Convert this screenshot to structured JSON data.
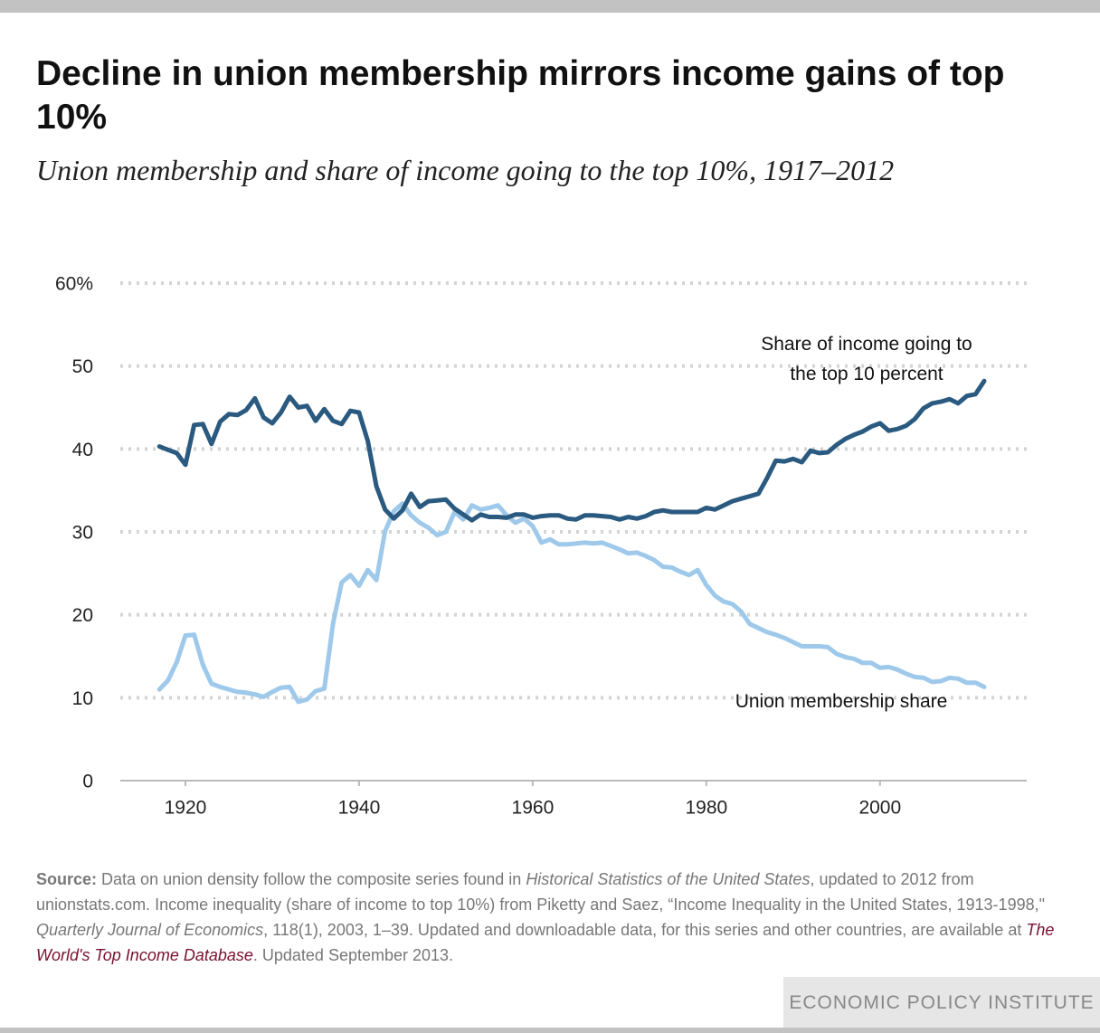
{
  "chart_data": {
    "type": "line",
    "title": "Decline in union membership mirrors income gains of top 10%",
    "subtitle": "Union membership and share of income going to the top 10%, 1917–2012",
    "x": [
      1917,
      1918,
      1919,
      1920,
      1921,
      1922,
      1923,
      1924,
      1925,
      1926,
      1927,
      1928,
      1929,
      1930,
      1931,
      1932,
      1933,
      1934,
      1935,
      1936,
      1937,
      1938,
      1939,
      1940,
      1941,
      1942,
      1943,
      1944,
      1945,
      1946,
      1947,
      1948,
      1949,
      1950,
      1951,
      1952,
      1953,
      1954,
      1955,
      1956,
      1957,
      1958,
      1959,
      1960,
      1961,
      1962,
      1963,
      1964,
      1965,
      1966,
      1967,
      1968,
      1969,
      1970,
      1971,
      1972,
      1973,
      1974,
      1975,
      1976,
      1977,
      1978,
      1979,
      1980,
      1981,
      1982,
      1983,
      1984,
      1985,
      1986,
      1987,
      1988,
      1989,
      1990,
      1991,
      1992,
      1993,
      1994,
      1995,
      1996,
      1997,
      1998,
      1999,
      2000,
      2001,
      2002,
      2003,
      2004,
      2005,
      2006,
      2007,
      2008,
      2009,
      2010,
      2011,
      2012
    ],
    "series": [
      {
        "name": "Share of income going to the top 10 percent",
        "color": "#2a5a7f",
        "values": [
          40.3,
          39.9,
          39.5,
          38.1,
          42.9,
          43.0,
          40.6,
          43.3,
          44.2,
          44.1,
          44.7,
          46.1,
          43.8,
          43.1,
          44.4,
          46.3,
          45.0,
          45.2,
          43.4,
          44.8,
          43.4,
          43.0,
          44.6,
          44.4,
          41.0,
          35.5,
          32.7,
          31.6,
          32.6,
          34.6,
          33.0,
          33.7,
          33.8,
          33.9,
          32.8,
          32.1,
          31.4,
          32.1,
          31.8,
          31.8,
          31.7,
          32.1,
          32.1,
          31.7,
          31.9,
          32.0,
          32.0,
          31.6,
          31.5,
          32.0,
          32.0,
          31.9,
          31.8,
          31.5,
          31.8,
          31.6,
          31.9,
          32.4,
          32.6,
          32.4,
          32.4,
          32.4,
          32.4,
          32.9,
          32.7,
          33.2,
          33.7,
          34.0,
          34.3,
          34.6,
          36.5,
          38.6,
          38.5,
          38.8,
          38.4,
          39.8,
          39.5,
          39.6,
          40.5,
          41.2,
          41.7,
          42.1,
          42.7,
          43.1,
          42.2,
          42.4,
          42.8,
          43.6,
          44.9,
          45.5,
          45.7,
          46.0,
          45.5,
          46.4,
          46.6,
          48.2
        ]
      },
      {
        "name": "Union membership share",
        "color": "#9ec9ea",
        "values": [
          11.0,
          12.1,
          14.3,
          17.5,
          17.6,
          14.0,
          11.7,
          11.3,
          11.0,
          10.7,
          10.6,
          10.4,
          10.1,
          10.7,
          11.2,
          11.3,
          9.5,
          9.8,
          10.8,
          11.1,
          18.9,
          23.9,
          24.8,
          23.5,
          25.4,
          24.2,
          30.1,
          32.5,
          33.4,
          32.0,
          31.1,
          30.5,
          29.6,
          30.0,
          32.4,
          31.5,
          33.2,
          32.7,
          32.9,
          33.2,
          32.0,
          31.1,
          31.6,
          30.7,
          28.7,
          29.1,
          28.5,
          28.5,
          28.6,
          28.7,
          28.6,
          28.7,
          28.3,
          27.9,
          27.4,
          27.5,
          27.1,
          26.6,
          25.8,
          25.7,
          25.2,
          24.8,
          25.4,
          23.6,
          22.3,
          21.6,
          21.3,
          20.4,
          18.9,
          18.4,
          17.9,
          17.6,
          17.2,
          16.7,
          16.2,
          16.2,
          16.2,
          16.1,
          15.3,
          14.9,
          14.7,
          14.2,
          14.2,
          13.6,
          13.7,
          13.4,
          12.9,
          12.5,
          12.4,
          11.9,
          12.0,
          12.4,
          12.3,
          11.8,
          11.8,
          11.3
        ]
      }
    ],
    "xlim": [
      1912.5,
      2016.9
    ],
    "xticks": [
      1920,
      1940,
      1960,
      1980,
      2000
    ],
    "ylim": [
      0,
      60
    ],
    "yticks": [
      0,
      10,
      20,
      30,
      40,
      {
        "value": 60,
        "label": "60%"
      },
      50
    ],
    "grid": true
  },
  "source": {
    "label": "Source:",
    "parts": [
      " Data on union density follow the composite series found in ",
      "Historical Statistics of the United States",
      ", updated to 2012 from unionstats.com. Income inequality (share of income to top 10%) from Piketty and Saez, “Income Inequality in the United States, 1913-1998,\" ",
      "Quarterly Journal of Economics",
      ", 118(1), 2003, 1–39. Updated and downloadable data, for this series and other countries, are available at ",
      "The World's Top Income Database",
      ". Updated September 2013."
    ]
  },
  "credit": "ECONOMIC POLICY INSTITUTE"
}
